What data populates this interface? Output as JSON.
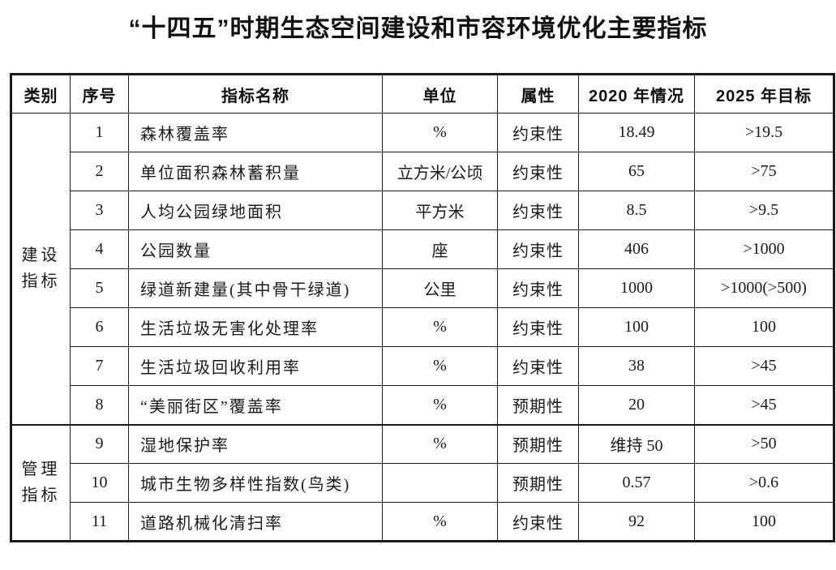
{
  "title": "“十四五”时期生态空间建设和市容环境优化主要指标",
  "colors": {
    "text": "#1a1a1a",
    "border": "#1a1a1a",
    "background": "#ffffff"
  },
  "table": {
    "columns": [
      "类别",
      "序号",
      "指标名称",
      "单位",
      "属性",
      "2020 年情况",
      "2025 年目标"
    ],
    "groups": [
      {
        "category": "建设指标",
        "rows": [
          {
            "no": "1",
            "name": "森林覆盖率",
            "unit": "%",
            "attr": "约束性",
            "y2020": "18.49",
            "y2025": ">19.5"
          },
          {
            "no": "2",
            "name": "单位面积森林蓄积量",
            "unit": "立方米/公顷",
            "attr": "约束性",
            "y2020": "65",
            "y2025": ">75"
          },
          {
            "no": "3",
            "name": "人均公园绿地面积",
            "unit": "平方米",
            "attr": "约束性",
            "y2020": "8.5",
            "y2025": ">9.5"
          },
          {
            "no": "4",
            "name": "公园数量",
            "unit": "座",
            "attr": "约束性",
            "y2020": "406",
            "y2025": ">1000"
          },
          {
            "no": "5",
            "name": "绿道新建量(其中骨干绿道)",
            "unit": "公里",
            "attr": "约束性",
            "y2020": "1000",
            "y2025": ">1000(>500)"
          },
          {
            "no": "6",
            "name": "生活垃圾无害化处理率",
            "unit": "%",
            "attr": "约束性",
            "y2020": "100",
            "y2025": "100"
          },
          {
            "no": "7",
            "name": "生活垃圾回收利用率",
            "unit": "%",
            "attr": "约束性",
            "y2020": "38",
            "y2025": ">45"
          },
          {
            "no": "8",
            "name": "“美丽街区”覆盖率",
            "unit": "%",
            "attr": "预期性",
            "y2020": "20",
            "y2025": ">45"
          }
        ]
      },
      {
        "category": "管理指标",
        "rows": [
          {
            "no": "9",
            "name": "湿地保护率",
            "unit": "%",
            "attr": "预期性",
            "y2020": "维持 50",
            "y2025": ">50"
          },
          {
            "no": "10",
            "name": "城市生物多样性指数(鸟类)",
            "unit": "",
            "attr": "预期性",
            "y2020": "0.57",
            "y2025": ">0.6"
          },
          {
            "no": "11",
            "name": "道路机械化清扫率",
            "unit": "%",
            "attr": "约束性",
            "y2020": "92",
            "y2025": "100"
          }
        ]
      }
    ]
  }
}
